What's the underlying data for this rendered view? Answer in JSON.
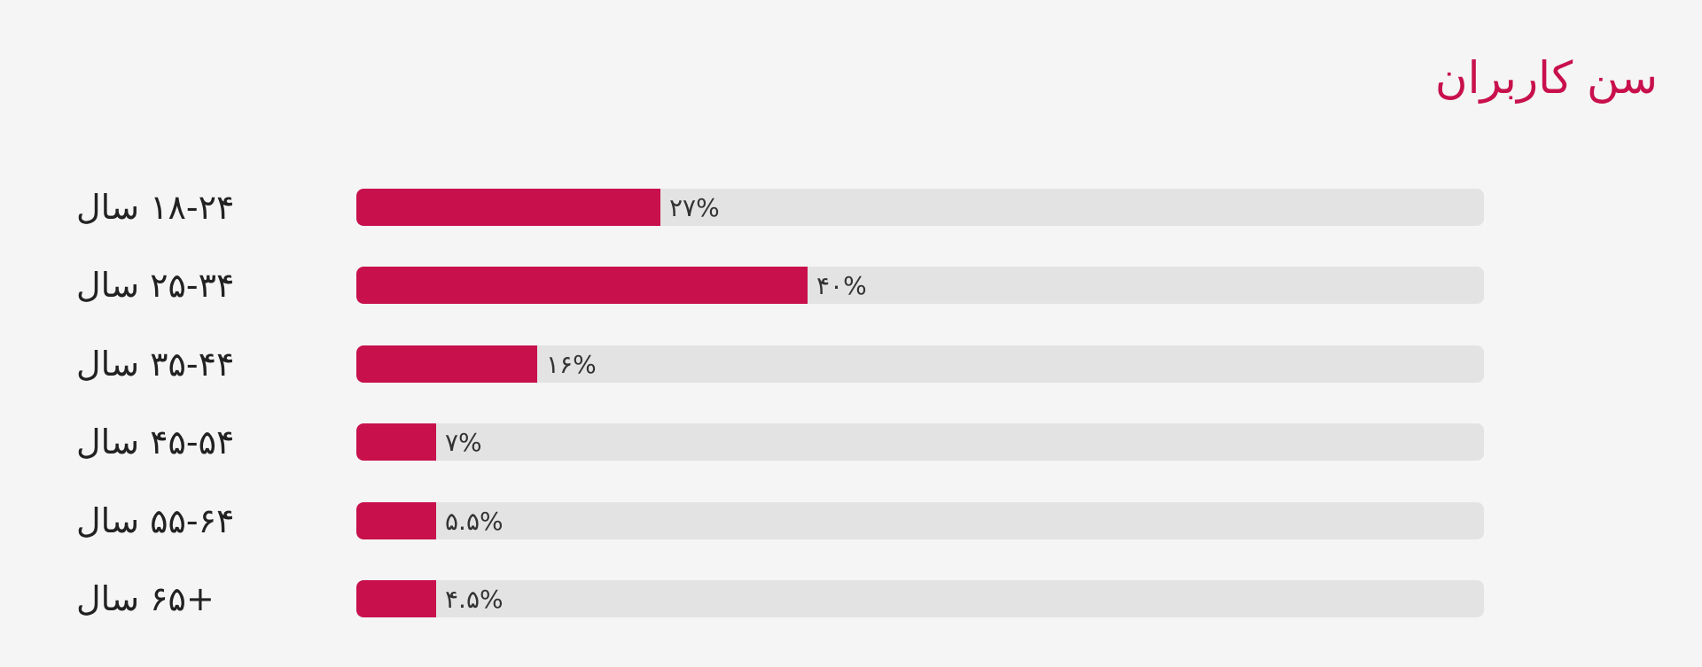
{
  "colors": {
    "accent": "#c8104c",
    "track": "#e3e3e3",
    "background": "#f5f5f5",
    "label_text": "#222222",
    "value_text": "#333333"
  },
  "chart_data": {
    "type": "bar",
    "orientation": "horizontal",
    "title": "سن کاربران",
    "categories": [
      "۱۸-۲۴ سال",
      "۲۵-۳۴ سال",
      "۳۵-۴۴ سال",
      "۴۵-۵۴ سال",
      "۵۵-۶۴ سال",
      "+۶۵ سال"
    ],
    "values": [
      27,
      40,
      16,
      7,
      5.5,
      4.5
    ],
    "value_labels": [
      "۲۷%",
      "۴۰%",
      "۱۶%",
      "۷%",
      "۵.۵%",
      "۴.۵%"
    ],
    "xlim": [
      0,
      100
    ],
    "grid": false,
    "legend": "none"
  }
}
